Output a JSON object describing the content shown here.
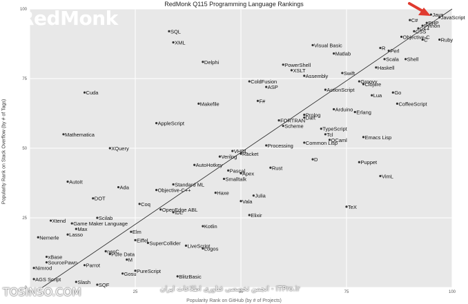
{
  "watermark": {
    "logo": "RedMonk",
    "site_left": "TOSINSO.COM",
    "site_right": "انجمن تخصصی فناوری اطلاعات ایران - ITPro.ir"
  },
  "colors": {
    "background": "#e8e8e8",
    "grid": "#ffffff",
    "fit_line": "#222222",
    "arrow": "#e03a2f"
  },
  "chart_data": {
    "type": "scatter",
    "title": "RedMonk Q115 Programming Language Rankings",
    "ylabel": "Popularity Rank on Stack Overflow (by # of Tags)",
    "xlabel": "Popularity Rank on GitHub (by # of Projects)",
    "xlim": [
      0,
      100
    ],
    "ylim": [
      0,
      100
    ],
    "xticks": [
      0,
      25,
      50,
      75,
      100
    ],
    "yticks": [
      0,
      25,
      50,
      75,
      100
    ],
    "grid": true,
    "fit_line": [
      [
        3,
        0
      ],
      [
        100,
        100
      ]
    ],
    "annotation": "red arrow pointing to the top-right cluster (JavaScript, Java)",
    "points": [
      {
        "label": "JavaScript",
        "x": 97,
        "y": 97
      },
      {
        "label": "Java",
        "x": 95,
        "y": 98
      },
      {
        "label": "PHP",
        "x": 94,
        "y": 95
      },
      {
        "label": "Python",
        "x": 93,
        "y": 94
      },
      {
        "label": "C#",
        "x": 90,
        "y": 96
      },
      {
        "label": "C++",
        "x": 92,
        "y": 93
      },
      {
        "label": "CSS",
        "x": 91,
        "y": 92
      },
      {
        "label": "Objective-C",
        "x": 88,
        "y": 90
      },
      {
        "label": "C",
        "x": 93,
        "y": 89
      },
      {
        "label": "Ruby",
        "x": 97,
        "y": 89
      },
      {
        "label": "R",
        "x": 83,
        "y": 86
      },
      {
        "label": "Perl",
        "x": 85,
        "y": 85
      },
      {
        "label": "Scala",
        "x": 84,
        "y": 82
      },
      {
        "label": "Shell",
        "x": 89,
        "y": 82
      },
      {
        "label": "Visual Basic",
        "x": 67,
        "y": 87
      },
      {
        "label": "Matlab",
        "x": 72,
        "y": 84
      },
      {
        "label": "Haskell",
        "x": 82,
        "y": 79
      },
      {
        "label": "Swift",
        "x": 74,
        "y": 77
      },
      {
        "label": "Groovy",
        "x": 78,
        "y": 74
      },
      {
        "label": "Clojure",
        "x": 79,
        "y": 73
      },
      {
        "label": "PowerShell",
        "x": 60,
        "y": 80
      },
      {
        "label": "XSLT",
        "x": 62,
        "y": 78
      },
      {
        "label": "Assembly",
        "x": 65,
        "y": 76
      },
      {
        "label": "ActionScript",
        "x": 70,
        "y": 71
      },
      {
        "label": "Lua",
        "x": 81,
        "y": 69
      },
      {
        "label": "Go",
        "x": 86,
        "y": 70
      },
      {
        "label": "CoffeeScript",
        "x": 87,
        "y": 66
      },
      {
        "label": "SQL",
        "x": 33,
        "y": 92
      },
      {
        "label": "XML",
        "x": 34,
        "y": 88
      },
      {
        "label": "Delphi",
        "x": 41,
        "y": 81
      },
      {
        "label": "ColdFusion",
        "x": 52,
        "y": 74
      },
      {
        "label": "ASP",
        "x": 56,
        "y": 72
      },
      {
        "label": "F#",
        "x": 54,
        "y": 67
      },
      {
        "label": "Arduino",
        "x": 72,
        "y": 64
      },
      {
        "label": "Erlang",
        "x": 77,
        "y": 63
      },
      {
        "label": "Prolog",
        "x": 65,
        "y": 62
      },
      {
        "label": "Dart",
        "x": 65,
        "y": 61
      },
      {
        "label": "FORTRAN",
        "x": 59,
        "y": 60
      },
      {
        "label": "Scheme",
        "x": 60,
        "y": 58
      },
      {
        "label": "TypeScript",
        "x": 69,
        "y": 57
      },
      {
        "label": "Tcl",
        "x": 70,
        "y": 55
      },
      {
        "label": "OCaml",
        "x": 71,
        "y": 53
      },
      {
        "label": "Emacs Lisp",
        "x": 79,
        "y": 54
      },
      {
        "label": "Common Lisp",
        "x": 65,
        "y": 52
      },
      {
        "label": "Cuda",
        "x": 13,
        "y": 70
      },
      {
        "label": "Makefile",
        "x": 40,
        "y": 66
      },
      {
        "label": "AppleScript",
        "x": 30,
        "y": 59
      },
      {
        "label": "Mathematica",
        "x": 8,
        "y": 55
      },
      {
        "label": "XQuery",
        "x": 19,
        "y": 50
      },
      {
        "label": "VHDL",
        "x": 48,
        "y": 49
      },
      {
        "label": "Racket",
        "x": 50,
        "y": 48
      },
      {
        "label": "Verilog",
        "x": 45,
        "y": 47
      },
      {
        "label": "Processing",
        "x": 56,
        "y": 51
      },
      {
        "label": "D",
        "x": 67,
        "y": 46
      },
      {
        "label": "Puppet",
        "x": 78,
        "y": 45
      },
      {
        "label": "AutoHotkey",
        "x": 39,
        "y": 44
      },
      {
        "label": "Rust",
        "x": 57,
        "y": 43
      },
      {
        "label": "Pascal",
        "x": 47,
        "y": 42
      },
      {
        "label": "Apex",
        "x": 50,
        "y": 41
      },
      {
        "label": "Smalltalk",
        "x": 46,
        "y": 39
      },
      {
        "label": "VimL",
        "x": 83,
        "y": 40
      },
      {
        "label": "AutoIt",
        "x": 9,
        "y": 38
      },
      {
        "label": "Ada",
        "x": 21,
        "y": 36
      },
      {
        "label": "Standard ML",
        "x": 34,
        "y": 37
      },
      {
        "label": "Objective-C++",
        "x": 30,
        "y": 35
      },
      {
        "label": "Haxe",
        "x": 44,
        "y": 34
      },
      {
        "label": "Julia",
        "x": 53,
        "y": 33
      },
      {
        "label": "DOT",
        "x": 15,
        "y": 32
      },
      {
        "label": "Vala",
        "x": 50,
        "y": 31
      },
      {
        "label": "TeX",
        "x": 75,
        "y": 29
      },
      {
        "label": "Coq",
        "x": 26,
        "y": 30
      },
      {
        "label": "OpenEdge ABL",
        "x": 31,
        "y": 28
      },
      {
        "label": "IDL",
        "x": 34,
        "y": 27
      },
      {
        "label": "Elixir",
        "x": 52,
        "y": 26
      },
      {
        "label": "Xtend",
        "x": 5,
        "y": 24
      },
      {
        "label": "Scilab",
        "x": 16,
        "y": 25
      },
      {
        "label": "Game Maker Language",
        "x": 10,
        "y": 23
      },
      {
        "label": "Kotlin",
        "x": 41,
        "y": 22
      },
      {
        "label": "Max",
        "x": 11,
        "y": 21
      },
      {
        "label": "Elm",
        "x": 24,
        "y": 20
      },
      {
        "label": "Lasso",
        "x": 9,
        "y": 19
      },
      {
        "label": "Nemerle",
        "x": 2,
        "y": 18
      },
      {
        "label": "Eiffel",
        "x": 25,
        "y": 17
      },
      {
        "label": "SuperCollider",
        "x": 28,
        "y": 16
      },
      {
        "label": "LiveScript",
        "x": 37,
        "y": 15
      },
      {
        "label": "Logos",
        "x": 41,
        "y": 14
      },
      {
        "label": "xBase",
        "x": 4,
        "y": 11
      },
      {
        "label": "nesC",
        "x": 18,
        "y": 13
      },
      {
        "label": "Pure Data",
        "x": 19,
        "y": 12
      },
      {
        "label": "M",
        "x": 23,
        "y": 10
      },
      {
        "label": "SourcePawn",
        "x": 4,
        "y": 9
      },
      {
        "label": "Parrot",
        "x": 13,
        "y": 8
      },
      {
        "label": "Nimrod",
        "x": 1,
        "y": 7
      },
      {
        "label": "PureScript",
        "x": 25,
        "y": 6
      },
      {
        "label": "Gosu",
        "x": 22,
        "y": 5
      },
      {
        "label": "BlitzBasic",
        "x": 35,
        "y": 4
      },
      {
        "label": "AGS Script",
        "x": 1,
        "y": 3
      },
      {
        "label": "Slash",
        "x": 11,
        "y": 2
      },
      {
        "label": "SQF",
        "x": 16,
        "y": 1
      }
    ]
  }
}
